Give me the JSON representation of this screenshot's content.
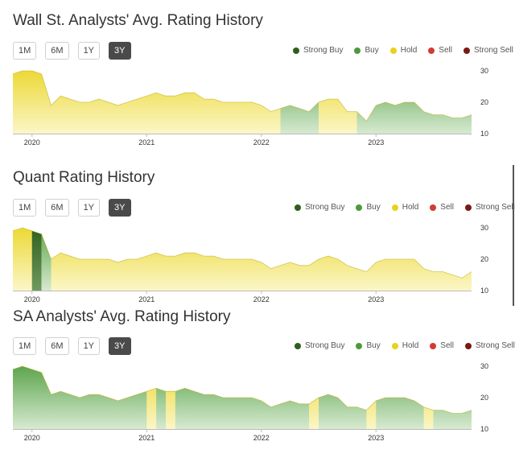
{
  "range_buttons": [
    "1M",
    "6M",
    "1Y",
    "3Y"
  ],
  "active_range": "3Y",
  "legend": [
    {
      "label": "Strong Buy",
      "color": "#2e5e1e"
    },
    {
      "label": "Buy",
      "color": "#4c9a3c"
    },
    {
      "label": "Hold",
      "color": "#e8d21c"
    },
    {
      "label": "Sell",
      "color": "#d23c32"
    },
    {
      "label": "Strong Sell",
      "color": "#7a1a12"
    }
  ],
  "chart_data": [
    {
      "type": "area",
      "title": "Wall St. Analysts' Avg. Rating History",
      "x_tick_labels": [
        "2020",
        "2021",
        "2022",
        "2023"
      ],
      "y_tick_labels": [
        "30",
        "20",
        "10"
      ],
      "ylim": [
        10,
        30
      ],
      "xlim": [
        "2019-11",
        "2023-11"
      ],
      "x": [
        "2019-11",
        "2019-12",
        "2020-01",
        "2020-02",
        "2020-03",
        "2020-04",
        "2020-05",
        "2020-06",
        "2020-07",
        "2020-08",
        "2020-09",
        "2020-10",
        "2020-11",
        "2020-12",
        "2021-01",
        "2021-02",
        "2021-03",
        "2021-04",
        "2021-05",
        "2021-06",
        "2021-07",
        "2021-08",
        "2021-09",
        "2021-10",
        "2021-11",
        "2021-12",
        "2022-01",
        "2022-02",
        "2022-03",
        "2022-04",
        "2022-05",
        "2022-06",
        "2022-07",
        "2022-08",
        "2022-09",
        "2022-10",
        "2022-11",
        "2022-12",
        "2023-01",
        "2023-02",
        "2023-03",
        "2023-04",
        "2023-05",
        "2023-06",
        "2023-07",
        "2023-08",
        "2023-09",
        "2023-10",
        "2023-11"
      ],
      "values": [
        29,
        30,
        30,
        29,
        19,
        22,
        21,
        20,
        20,
        21,
        20,
        19,
        20,
        21,
        22,
        23,
        22,
        22,
        23,
        23,
        21,
        21,
        20,
        20,
        20,
        20,
        19,
        17,
        18,
        19,
        18,
        17,
        20,
        21,
        21,
        17,
        17,
        14,
        19,
        20,
        19,
        20,
        20,
        17,
        16,
        16,
        15,
        15,
        16
      ],
      "rating_bands": [
        {
          "from": "2019-11",
          "to": "2022-03",
          "rating": "Hold"
        },
        {
          "from": "2022-03",
          "to": "2022-07",
          "rating": "Buy"
        },
        {
          "from": "2022-07",
          "to": "2022-11",
          "rating": "Hold"
        },
        {
          "from": "2022-11",
          "to": "2023-11",
          "rating": "Buy"
        }
      ]
    },
    {
      "type": "area",
      "title": "Quant Rating History",
      "x_tick_labels": [
        "2020",
        "2021",
        "2022",
        "2023"
      ],
      "y_tick_labels": [
        "30",
        "20",
        "10"
      ],
      "ylim": [
        10,
        30
      ],
      "xlim": [
        "2019-11",
        "2023-11"
      ],
      "x": [
        "2019-11",
        "2019-12",
        "2020-01",
        "2020-02",
        "2020-03",
        "2020-04",
        "2020-05",
        "2020-06",
        "2020-07",
        "2020-08",
        "2020-09",
        "2020-10",
        "2020-11",
        "2020-12",
        "2021-01",
        "2021-02",
        "2021-03",
        "2021-04",
        "2021-05",
        "2021-06",
        "2021-07",
        "2021-08",
        "2021-09",
        "2021-10",
        "2021-11",
        "2021-12",
        "2022-01",
        "2022-02",
        "2022-03",
        "2022-04",
        "2022-05",
        "2022-06",
        "2022-07",
        "2022-08",
        "2022-09",
        "2022-10",
        "2022-11",
        "2022-12",
        "2023-01",
        "2023-02",
        "2023-03",
        "2023-04",
        "2023-05",
        "2023-06",
        "2023-07",
        "2023-08",
        "2023-09",
        "2023-10",
        "2023-11"
      ],
      "values": [
        29,
        30,
        29,
        28,
        20,
        22,
        21,
        20,
        20,
        20,
        20,
        19,
        20,
        20,
        21,
        22,
        21,
        21,
        22,
        22,
        21,
        21,
        20,
        20,
        20,
        20,
        19,
        17,
        18,
        19,
        18,
        18,
        20,
        21,
        20,
        18,
        17,
        16,
        19,
        20,
        20,
        20,
        20,
        17,
        16,
        16,
        15,
        14,
        16
      ],
      "rating_bands": [
        {
          "from": "2019-11",
          "to": "2023-11",
          "rating": "Hold"
        }
      ],
      "rating_stripes": [
        {
          "from": "2020-01",
          "to": "2020-02",
          "rating": "Strong Buy"
        },
        {
          "from": "2020-02",
          "to": "2020-03",
          "rating": "Buy"
        }
      ]
    },
    {
      "type": "area",
      "title": "SA Analysts' Avg. Rating History",
      "x_tick_labels": [
        "2020",
        "2021",
        "2022",
        "2023"
      ],
      "y_tick_labels": [
        "30",
        "20",
        "10"
      ],
      "ylim": [
        10,
        30
      ],
      "xlim": [
        "2019-11",
        "2023-11"
      ],
      "x": [
        "2019-11",
        "2019-12",
        "2020-01",
        "2020-02",
        "2020-03",
        "2020-04",
        "2020-05",
        "2020-06",
        "2020-07",
        "2020-08",
        "2020-09",
        "2020-10",
        "2020-11",
        "2020-12",
        "2021-01",
        "2021-02",
        "2021-03",
        "2021-04",
        "2021-05",
        "2021-06",
        "2021-07",
        "2021-08",
        "2021-09",
        "2021-10",
        "2021-11",
        "2021-12",
        "2022-01",
        "2022-02",
        "2022-03",
        "2022-04",
        "2022-05",
        "2022-06",
        "2022-07",
        "2022-08",
        "2022-09",
        "2022-10",
        "2022-11",
        "2022-12",
        "2023-01",
        "2023-02",
        "2023-03",
        "2023-04",
        "2023-05",
        "2023-06",
        "2023-07",
        "2023-08",
        "2023-09",
        "2023-10",
        "2023-11"
      ],
      "values": [
        29,
        30,
        29,
        28,
        21,
        22,
        21,
        20,
        21,
        21,
        20,
        19,
        20,
        21,
        22,
        23,
        22,
        22,
        23,
        22,
        21,
        21,
        20,
        20,
        20,
        20,
        19,
        17,
        18,
        19,
        18,
        18,
        20,
        21,
        20,
        17,
        17,
        16,
        19,
        20,
        20,
        20,
        19,
        17,
        16,
        16,
        15,
        15,
        16
      ],
      "rating_bands": [
        {
          "from": "2019-11",
          "to": "2023-11",
          "rating": "Buy"
        }
      ],
      "rating_stripes": [
        {
          "from": "2021-01",
          "to": "2021-02",
          "rating": "Hold"
        },
        {
          "from": "2021-03",
          "to": "2021-04",
          "rating": "Hold"
        },
        {
          "from": "2022-06",
          "to": "2022-07",
          "rating": "Hold"
        },
        {
          "from": "2022-12",
          "to": "2023-01",
          "rating": "Hold"
        },
        {
          "from": "2023-06",
          "to": "2023-07",
          "rating": "Hold"
        }
      ]
    }
  ]
}
